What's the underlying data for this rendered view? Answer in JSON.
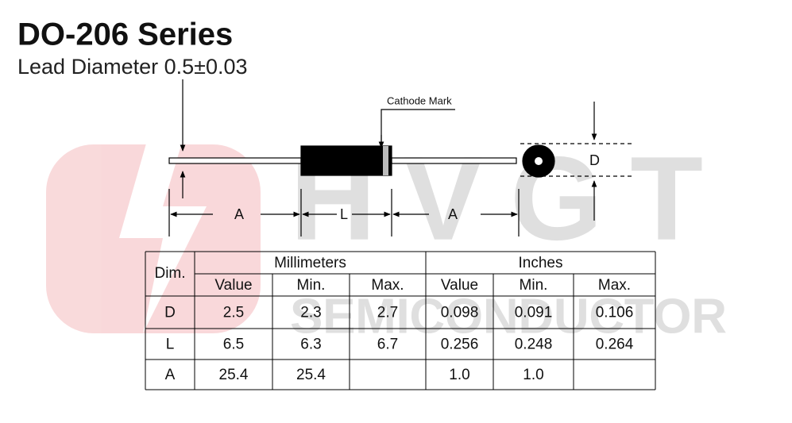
{
  "header": {
    "title": "DO-206 Series",
    "subtitle": "Lead Diameter 0.5±0.03"
  },
  "watermark": {
    "brand": "HVGT",
    "tagline": "SEMICONDUCTOR"
  },
  "diagram": {
    "cathode_label": "Cathode Mark",
    "diameter_label": "D",
    "lead_label_left": "A",
    "body_label": "L",
    "lead_label_right": "A"
  },
  "table": {
    "dim_header": "Dim.",
    "groups": [
      "Millimeters",
      "Inches"
    ],
    "columns": [
      "Value",
      "Min.",
      "Max.",
      "Value",
      "Min.",
      "Max."
    ],
    "rows": [
      [
        "D",
        "2.5",
        "2.3",
        "2.7",
        "0.098",
        "0.091",
        "0.106"
      ],
      [
        "L",
        "6.5",
        "6.3",
        "6.7",
        "0.256",
        "0.248",
        "0.264"
      ],
      [
        "A",
        "25.4",
        "25.4",
        null,
        "1.0",
        "1.0",
        null
      ]
    ]
  }
}
